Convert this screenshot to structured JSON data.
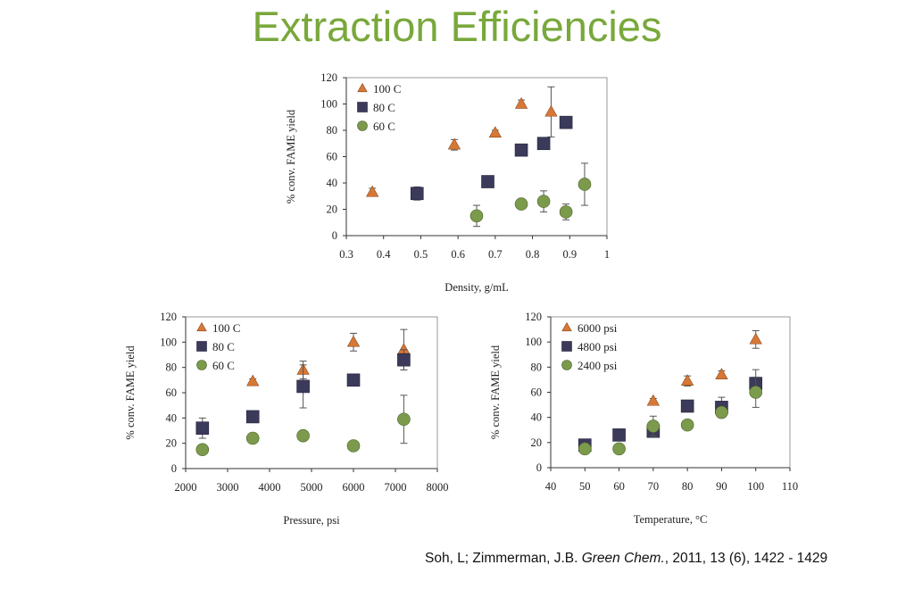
{
  "slide": {
    "title": "Extraction Efficiencies",
    "citation": {
      "authors": "Soh, L; Zimmerman, J.B. ",
      "journal": "Green Chem.",
      "rest": ", 2011, 13 (6), 1422 - 1429"
    }
  },
  "colors": {
    "title": "#79a83b",
    "triangle": "#d77836",
    "square": "#3c3a5a",
    "circle": "#7c9a4c"
  },
  "chart_data": [
    {
      "id": "density",
      "type": "scatter",
      "title": "",
      "xlabel": "Density, g/mL",
      "ylabel": "% conv. FAME yield",
      "xlim": [
        0.3,
        1.0
      ],
      "ylim": [
        0,
        120
      ],
      "xticks": [
        "0.3",
        "0.4",
        "0.5",
        "0.6",
        "0.7",
        "0.8",
        "0.9",
        "1"
      ],
      "yticks": [
        "0",
        "20",
        "40",
        "60",
        "80",
        "100",
        "120"
      ],
      "legend_position": "top-left",
      "series": [
        {
          "name": "100 C",
          "marker": "triangle",
          "color": "#d77836",
          "points": [
            {
              "x": 0.37,
              "y": 33,
              "err": 3
            },
            {
              "x": 0.59,
              "y": 69,
              "err": 4
            },
            {
              "x": 0.7,
              "y": 78,
              "err": 2
            },
            {
              "x": 0.77,
              "y": 100,
              "err": 3
            },
            {
              "x": 0.85,
              "y": 94,
              "err": 19
            }
          ]
        },
        {
          "name": "80 C",
          "marker": "square",
          "color": "#3c3a5a",
          "points": [
            {
              "x": 0.49,
              "y": 32,
              "err": 5
            },
            {
              "x": 0.68,
              "y": 41,
              "err": 0
            },
            {
              "x": 0.77,
              "y": 65,
              "err": 0
            },
            {
              "x": 0.83,
              "y": 70,
              "err": 0
            },
            {
              "x": 0.89,
              "y": 86,
              "err": 3
            }
          ]
        },
        {
          "name": "60 C",
          "marker": "circle",
          "color": "#7c9a4c",
          "points": [
            {
              "x": 0.65,
              "y": 15,
              "err": 8
            },
            {
              "x": 0.77,
              "y": 24,
              "err": 0
            },
            {
              "x": 0.83,
              "y": 26,
              "err": 8
            },
            {
              "x": 0.89,
              "y": 18,
              "err": 6
            },
            {
              "x": 0.94,
              "y": 39,
              "err": 16
            }
          ]
        }
      ]
    },
    {
      "id": "pressure",
      "type": "scatter",
      "title": "",
      "xlabel": "Pressure, psi",
      "ylabel": "% conv. FAME yield",
      "xlim": [
        2000,
        8000
      ],
      "ylim": [
        0,
        120
      ],
      "xticks": [
        "2000",
        "3000",
        "4000",
        "5000",
        "6000",
        "7000",
        "8000"
      ],
      "yticks": [
        "0",
        "20",
        "40",
        "60",
        "80",
        "100",
        "120"
      ],
      "legend_position": "top-left",
      "series": [
        {
          "name": "100 C",
          "marker": "triangle",
          "color": "#d77836",
          "points": [
            {
              "x": 3600,
              "y": 69,
              "err": 2
            },
            {
              "x": 4800,
              "y": 78,
              "err": 7
            },
            {
              "x": 6000,
              "y": 100,
              "err": 7
            },
            {
              "x": 7200,
              "y": 94,
              "err": 16
            }
          ]
        },
        {
          "name": "80 C",
          "marker": "square",
          "color": "#3c3a5a",
          "points": [
            {
              "x": 2400,
              "y": 32,
              "err": 8
            },
            {
              "x": 3600,
              "y": 41,
              "err": 0
            },
            {
              "x": 4800,
              "y": 65,
              "err": 17
            },
            {
              "x": 6000,
              "y": 70,
              "err": 0
            },
            {
              "x": 7200,
              "y": 86,
              "err": 8
            }
          ]
        },
        {
          "name": "60 C",
          "marker": "circle",
          "color": "#7c9a4c",
          "points": [
            {
              "x": 2400,
              "y": 15,
              "err": 0
            },
            {
              "x": 3600,
              "y": 24,
              "err": 4
            },
            {
              "x": 4800,
              "y": 26,
              "err": 0
            },
            {
              "x": 6000,
              "y": 18,
              "err": 0
            },
            {
              "x": 7200,
              "y": 39,
              "err": 19
            }
          ]
        }
      ]
    },
    {
      "id": "temperature",
      "type": "scatter",
      "title": "",
      "xlabel": "Temperature, °C",
      "ylabel": "% conv. FAME yield",
      "xlim": [
        40,
        110
      ],
      "ylim": [
        0,
        120
      ],
      "xticks": [
        "40",
        "50",
        "60",
        "70",
        "80",
        "90",
        "100",
        "110"
      ],
      "yticks": [
        "0",
        "20",
        "40",
        "60",
        "80",
        "100",
        "120"
      ],
      "legend_position": "top-left",
      "series": [
        {
          "name": "6000 psi",
          "marker": "triangle",
          "color": "#d77836",
          "points": [
            {
              "x": 70,
              "y": 53,
              "err": 2
            },
            {
              "x": 80,
              "y": 69,
              "err": 4
            },
            {
              "x": 90,
              "y": 74,
              "err": 3
            },
            {
              "x": 100,
              "y": 102,
              "err": 7
            }
          ]
        },
        {
          "name": "4800 psi",
          "marker": "square",
          "color": "#3c3a5a",
          "points": [
            {
              "x": 50,
              "y": 18,
              "err": 0
            },
            {
              "x": 60,
              "y": 26,
              "err": 0
            },
            {
              "x": 70,
              "y": 29,
              "err": 0
            },
            {
              "x": 80,
              "y": 49,
              "err": 3
            },
            {
              "x": 90,
              "y": 48,
              "err": 8
            },
            {
              "x": 100,
              "y": 67,
              "err": 11
            }
          ]
        },
        {
          "name": "2400 psi",
          "marker": "circle",
          "color": "#7c9a4c",
          "points": [
            {
              "x": 50,
              "y": 15,
              "err": 0
            },
            {
              "x": 60,
              "y": 15,
              "err": 0
            },
            {
              "x": 70,
              "y": 33,
              "err": 8
            },
            {
              "x": 80,
              "y": 34,
              "err": 3
            },
            {
              "x": 90,
              "y": 44,
              "err": 2
            },
            {
              "x": 100,
              "y": 60,
              "err": 12
            }
          ]
        }
      ]
    }
  ]
}
